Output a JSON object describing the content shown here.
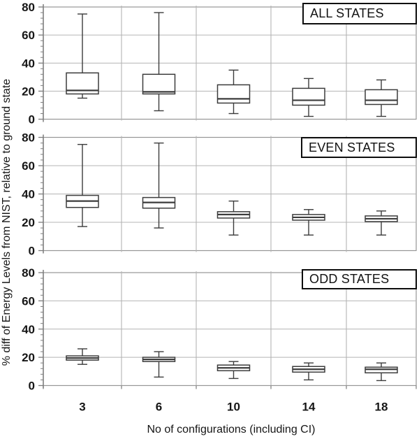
{
  "chart_data": {
    "type": "boxplot",
    "x_label": "No of configurations (including CI)",
    "y_label": "% diff of Energy Levels from NIST, relative to ground state",
    "categories": [
      "3",
      "6",
      "10",
      "14",
      "18"
    ],
    "ylim": [
      0,
      80
    ],
    "y_ticks": [
      0,
      20,
      40,
      60,
      80
    ],
    "y_minor_tick_step": 4,
    "grid": true,
    "legend": "none",
    "panels": [
      {
        "label": "ALL STATES",
        "boxes": [
          {
            "category": "3",
            "whisker_low": 15,
            "q1": 18,
            "median": 20.5,
            "q3": 33,
            "whisker_high": 75
          },
          {
            "category": "6",
            "whisker_low": 6,
            "q1": 18,
            "median": 19.5,
            "q3": 32,
            "whisker_high": 76
          },
          {
            "category": "10",
            "whisker_low": 4,
            "q1": 11.5,
            "median": 14.5,
            "q3": 24.5,
            "whisker_high": 35
          },
          {
            "category": "14",
            "whisker_low": 2,
            "q1": 10,
            "median": 13.5,
            "q3": 22,
            "whisker_high": 29
          },
          {
            "category": "18",
            "whisker_low": 2,
            "q1": 10.5,
            "median": 13.5,
            "q3": 21,
            "whisker_high": 28
          }
        ]
      },
      {
        "label": "EVEN STATES",
        "boxes": [
          {
            "category": "3",
            "whisker_low": 17,
            "q1": 30.5,
            "median": 35,
            "q3": 39,
            "whisker_high": 75
          },
          {
            "category": "6",
            "whisker_low": 16,
            "q1": 30,
            "median": 34,
            "q3": 37.5,
            "whisker_high": 76
          },
          {
            "category": "10",
            "whisker_low": 11,
            "q1": 23,
            "median": 25.5,
            "q3": 27.5,
            "whisker_high": 35
          },
          {
            "category": "14",
            "whisker_low": 11,
            "q1": 21.5,
            "median": 23.5,
            "q3": 25.5,
            "whisker_high": 29
          },
          {
            "category": "18",
            "whisker_low": 11,
            "q1": 20.5,
            "median": 22.5,
            "q3": 24.5,
            "whisker_high": 28
          }
        ]
      },
      {
        "label": "ODD STATES",
        "boxes": [
          {
            "category": "3",
            "whisker_low": 15,
            "q1": 18,
            "median": 19.5,
            "q3": 21,
            "whisker_high": 26
          },
          {
            "category": "6",
            "whisker_low": 6,
            "q1": 17,
            "median": 18.5,
            "q3": 20,
            "whisker_high": 24
          },
          {
            "category": "10",
            "whisker_low": 5,
            "q1": 10.5,
            "median": 12.5,
            "q3": 14.5,
            "whisker_high": 17
          },
          {
            "category": "14",
            "whisker_low": 4,
            "q1": 9.5,
            "median": 11.5,
            "q3": 13.5,
            "whisker_high": 16
          },
          {
            "category": "18",
            "whisker_low": 3.5,
            "q1": 9,
            "median": 11.5,
            "q3": 13,
            "whisker_high": 16
          }
        ]
      }
    ]
  },
  "theme": {
    "background": "#ffffff",
    "grid_color": "#b4b4b4",
    "frame_color": "#969696",
    "axis_color": "#7d7d7d",
    "box_stroke": "#3c3c3c",
    "box_fill": "#ffffff",
    "text_color": "#161616",
    "panel_label_border": "#0d0d0d"
  }
}
